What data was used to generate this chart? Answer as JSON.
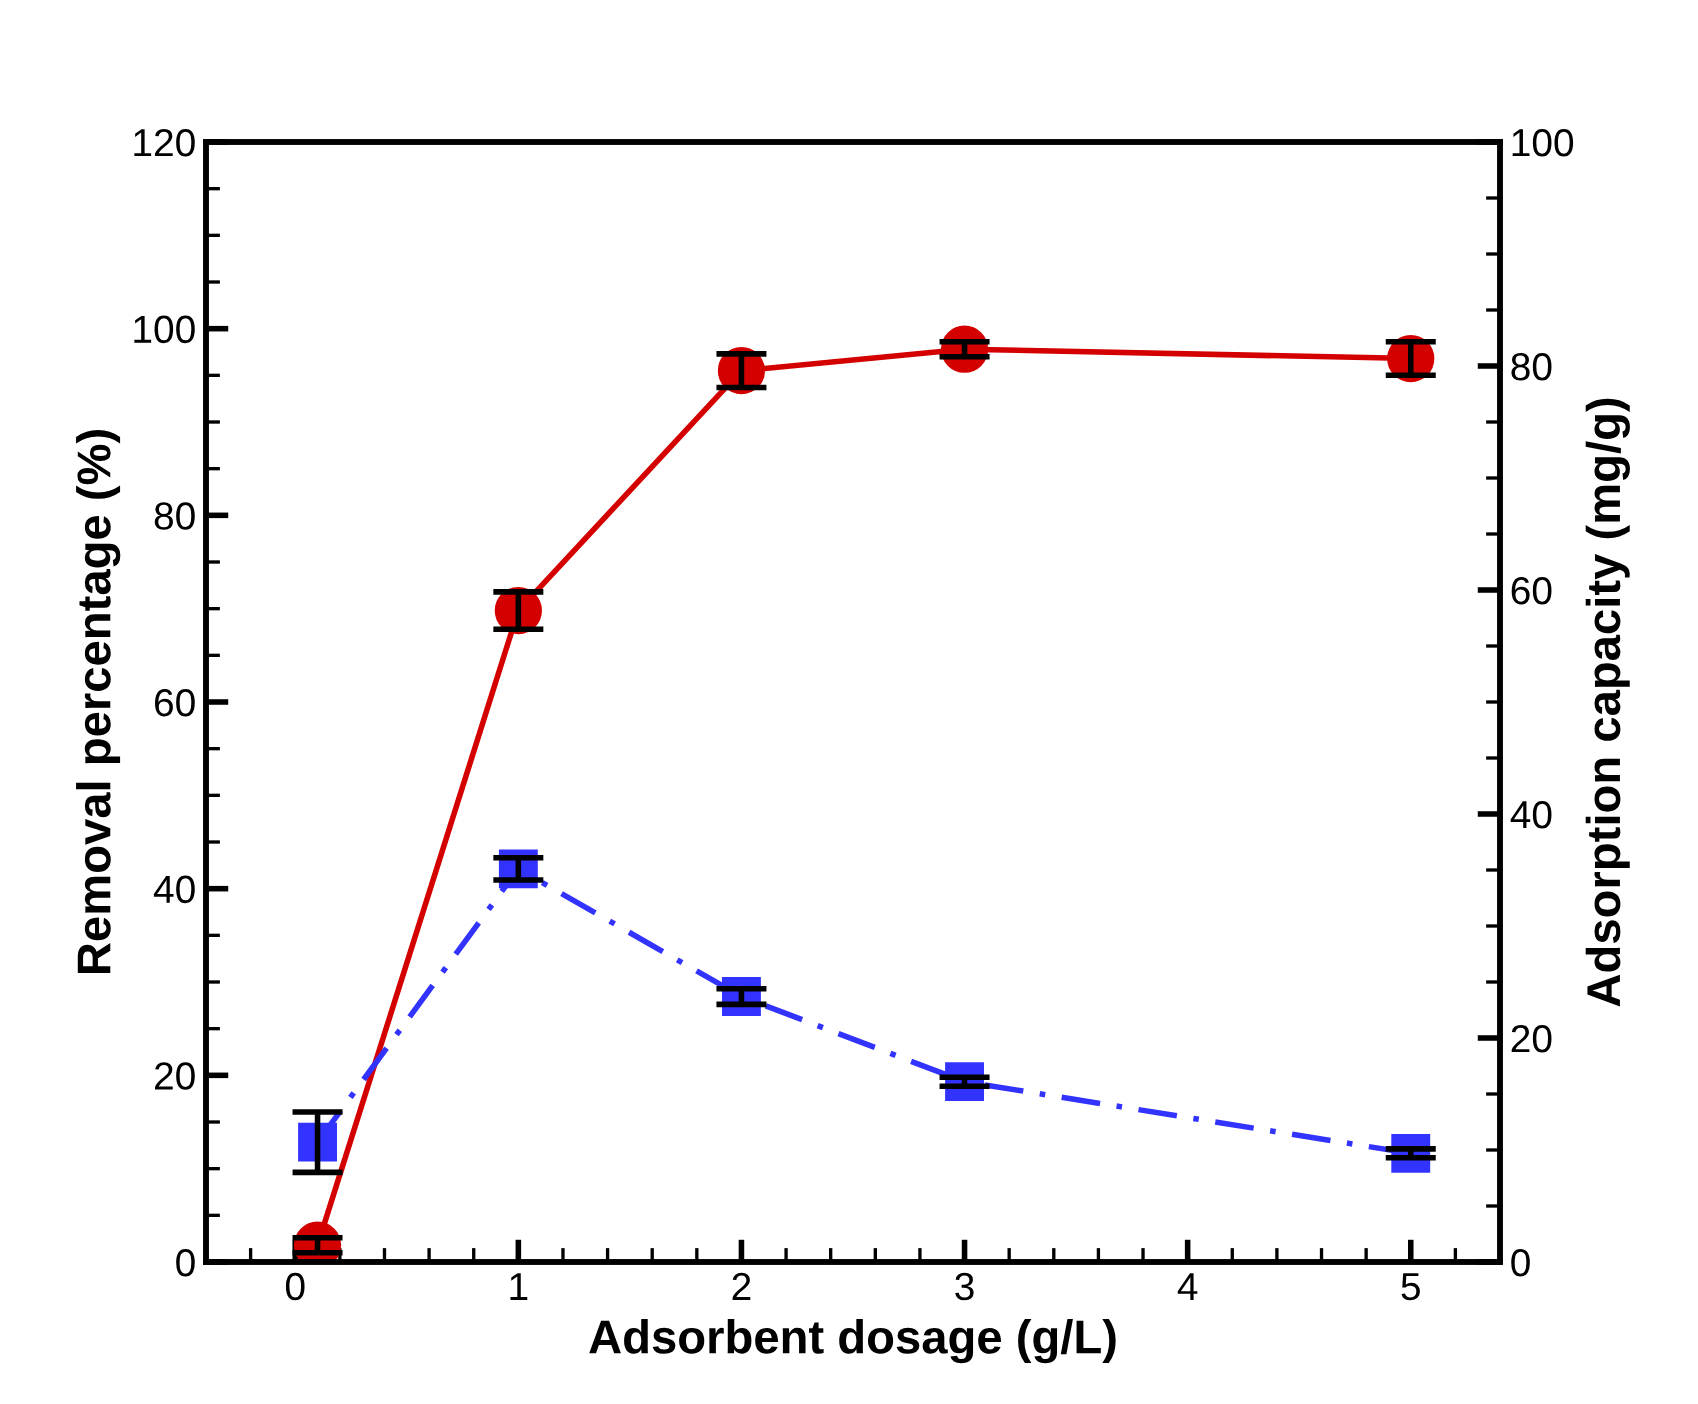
{
  "chart_data": {
    "type": "line",
    "xlabel": "Adsorbent dosage (g/L)",
    "ylabel": "Removal percentage (%)",
    "y2label": "Adsorption capacity (mg/g)",
    "x": [
      0.1,
      1,
      2,
      3,
      5
    ],
    "xlim": [
      -0.4,
      5.4
    ],
    "xticks": [
      0,
      1,
      2,
      3,
      4,
      5
    ],
    "ylim": [
      0,
      120
    ],
    "yticks": [
      0,
      20,
      40,
      60,
      80,
      100,
      120
    ],
    "y2lim": [
      0,
      100
    ],
    "y2ticks": [
      0,
      20,
      40,
      60,
      80,
      100
    ],
    "grid": false,
    "legend": false,
    "series": [
      {
        "color": "#d40000",
        "marker": "circle",
        "line_style": "solid",
        "values": [
          1.8,
          69.8,
          95.5,
          97.8,
          96.8
        ],
        "errors": [
          0.8,
          2,
          1.8,
          0.8,
          1.8
        ]
      },
      {
        "color": "#3333ff",
        "marker": "square",
        "line_style": "dashed",
        "axis": "y2",
        "values": [
          10.7,
          35.1,
          23.7,
          16.1,
          9.7
        ],
        "errors": [
          2.7,
          1,
          0.7,
          0.4,
          0.4
        ]
      }
    ]
  }
}
